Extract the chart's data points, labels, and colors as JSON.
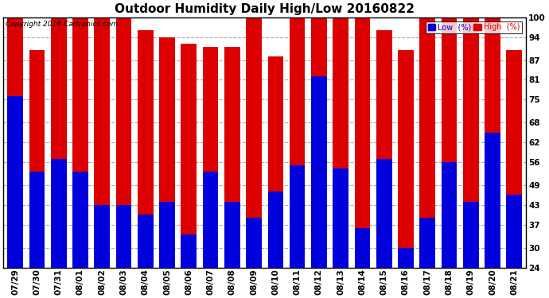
{
  "title": "Outdoor Humidity Daily High/Low 20160822",
  "copyright": "Copyright 2016 Cartronics.com",
  "background_color": "#ffffff",
  "plot_bg_color": "#ffffff",
  "bar_color_low": "#0000dd",
  "bar_color_high": "#dd0000",
  "ylabel_right_ticks": [
    24,
    30,
    37,
    43,
    49,
    56,
    62,
    68,
    75,
    81,
    87,
    94,
    100
  ],
  "ylim": [
    24,
    100
  ],
  "dates": [
    "07/29",
    "07/30",
    "07/31",
    "08/01",
    "08/02",
    "08/03",
    "08/04",
    "08/05",
    "08/06",
    "08/07",
    "08/08",
    "08/09",
    "08/10",
    "08/11",
    "08/12",
    "08/13",
    "08/14",
    "08/15",
    "08/16",
    "08/17",
    "08/18",
    "08/19",
    "08/20",
    "08/21"
  ],
  "high_values": [
    100,
    90,
    100,
    100,
    100,
    100,
    96,
    94,
    92,
    91,
    91,
    100,
    88,
    100,
    100,
    100,
    100,
    96,
    90,
    100,
    100,
    100,
    100,
    90
  ],
  "low_values": [
    76,
    53,
    57,
    53,
    43,
    43,
    40,
    44,
    34,
    53,
    44,
    39,
    47,
    55,
    82,
    54,
    36,
    57,
    30,
    39,
    56,
    44,
    65,
    46
  ],
  "legend_low_label": "Low  (%)",
  "legend_high_label": "High  (%)",
  "grid_color": "#aaaaaa",
  "grid_linestyle": "--",
  "title_fontsize": 11,
  "tick_fontsize": 7.5,
  "bar_width": 0.72,
  "fig_width": 6.9,
  "fig_height": 3.75,
  "dpi": 100
}
